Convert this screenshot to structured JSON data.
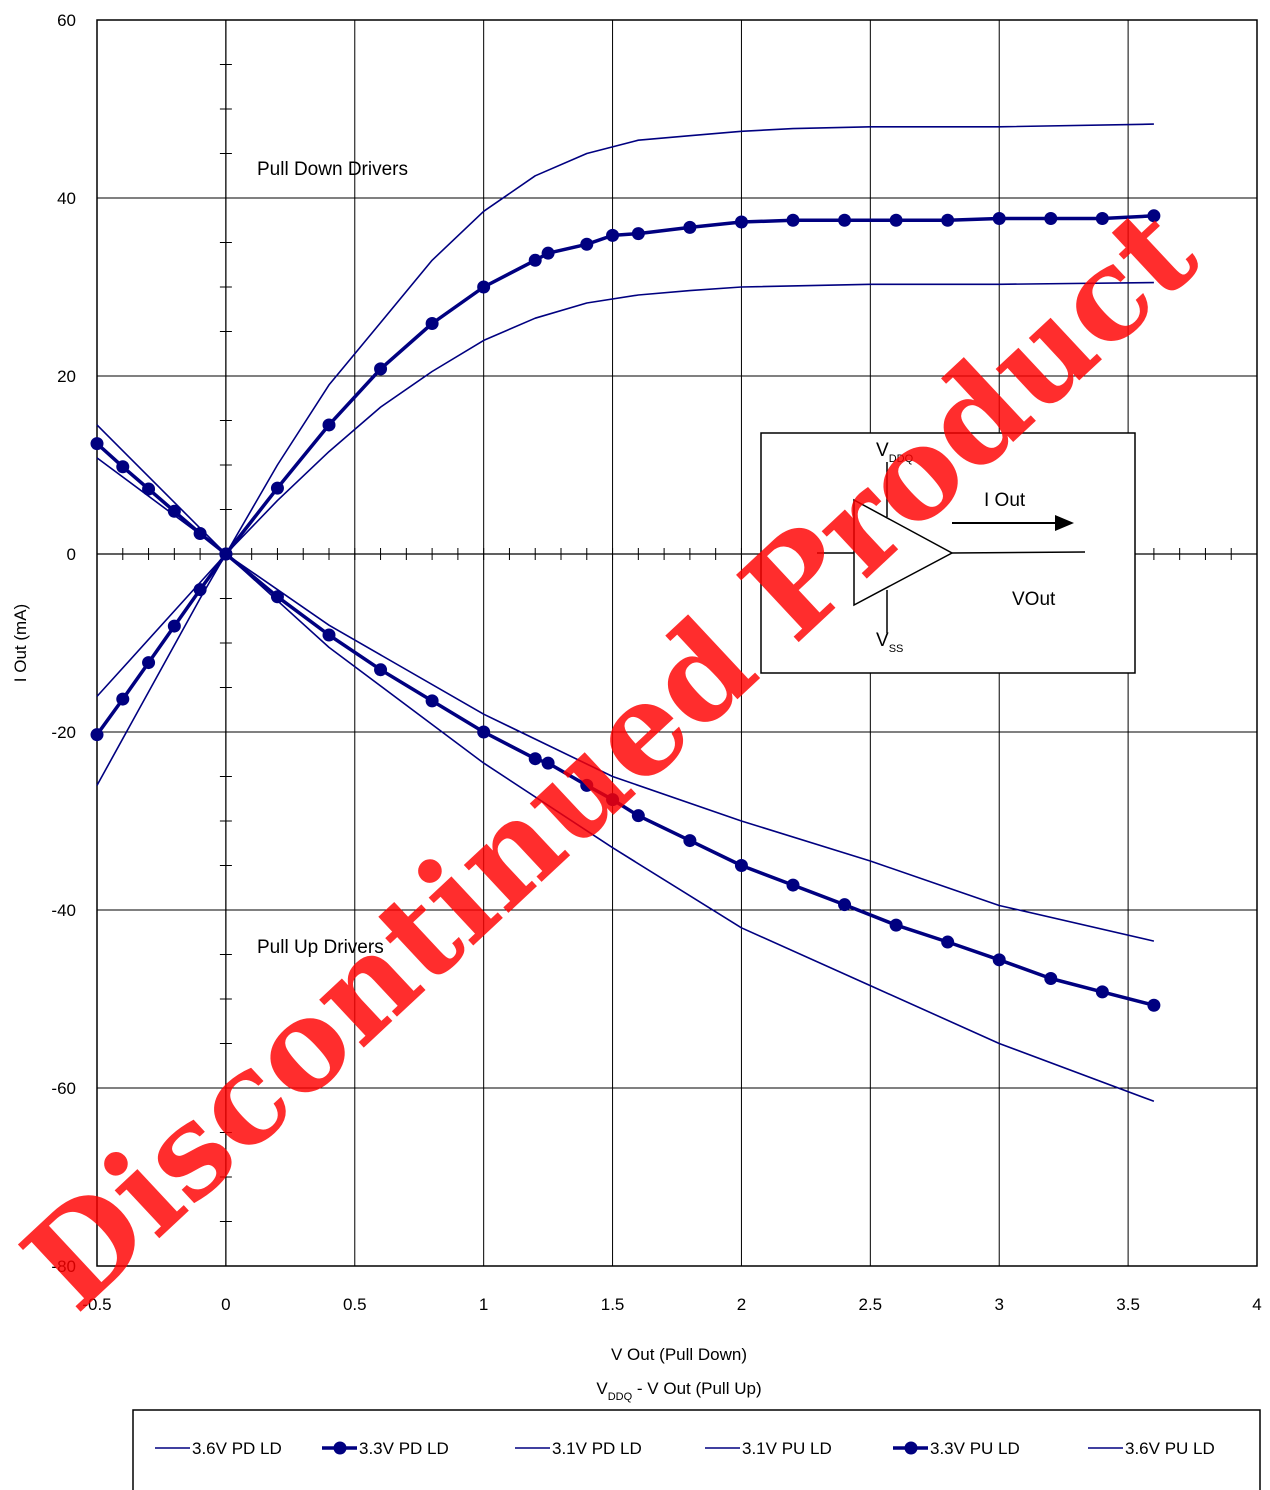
{
  "chart_data": {
    "type": "line",
    "xlabel_line1": "V Out (Pull Down)",
    "xlabel_line2_main": "V",
    "xlabel_line2_sub": "DDQ",
    "xlabel_line2_rest": " - V Out (Pull Up)",
    "ylabel": "I Out (mA)",
    "xlim": [
      -0.5,
      4
    ],
    "ylim": [
      -80,
      60
    ],
    "x_ticks": [
      "-0.5",
      "0",
      "0.5",
      "1",
      "1.5",
      "2",
      "2.5",
      "3",
      "3.5",
      "4"
    ],
    "y_ticks": [
      "60",
      "40",
      "20",
      "0",
      "-20",
      "-40",
      "-60",
      "-80"
    ],
    "grid": true,
    "legend_position": "bottom",
    "annotations": {
      "pull_down": "Pull Down Drivers",
      "pull_up": "Pull Up Drivers"
    },
    "series": [
      {
        "name": "3.6V PD LD",
        "markers": false,
        "x": [
          -0.5,
          -0.1,
          0,
          0.2,
          0.4,
          0.6,
          0.8,
          1.0,
          1.2,
          1.4,
          1.6,
          1.8,
          2.0,
          2.2,
          2.5,
          3.0,
          3.6
        ],
        "y": [
          -26,
          -5,
          0,
          10,
          19,
          26,
          33,
          38.5,
          42.5,
          45,
          46.5,
          47,
          47.5,
          47.8,
          48,
          48,
          48.3
        ]
      },
      {
        "name": "3.3V PD LD",
        "markers": true,
        "x": [
          -0.5,
          -0.4,
          -0.3,
          -0.2,
          -0.1,
          0,
          0.2,
          0.4,
          0.6,
          0.8,
          1.0,
          1.2,
          1.25,
          1.4,
          1.5,
          1.6,
          1.8,
          2.0,
          2.2,
          2.4,
          2.6,
          2.8,
          3.0,
          3.2,
          3.4,
          3.6
        ],
        "y": [
          -20.3,
          -16.3,
          -12.2,
          -8.1,
          -4,
          0,
          7.4,
          14.5,
          20.8,
          25.9,
          30,
          33,
          33.8,
          34.8,
          35.8,
          36,
          36.7,
          37.3,
          37.5,
          37.5,
          37.5,
          37.5,
          37.7,
          37.7,
          37.7,
          38
        ]
      },
      {
        "name": "3.1V PD LD",
        "markers": false,
        "x": [
          -0.5,
          -0.1,
          0,
          0.2,
          0.4,
          0.6,
          0.8,
          1.0,
          1.2,
          1.4,
          1.6,
          1.8,
          2.0,
          2.5,
          3.0,
          3.6
        ],
        "y": [
          -16,
          -3.2,
          0,
          6,
          11.5,
          16.5,
          20.5,
          24,
          26.5,
          28.2,
          29.1,
          29.6,
          30,
          30.3,
          30.3,
          30.5
        ]
      },
      {
        "name": "3.1V PU LD",
        "markers": false,
        "x": [
          -0.5,
          -0.1,
          0,
          0.4,
          1.0,
          1.5,
          2.0,
          2.5,
          3.0,
          3.6
        ],
        "y": [
          10.8,
          2.2,
          0,
          -8,
          -18,
          -25,
          -30,
          -34.5,
          -39.5,
          -43.5
        ]
      },
      {
        "name": "3.3V PU LD",
        "markers": true,
        "x": [
          -0.5,
          -0.4,
          -0.3,
          -0.2,
          -0.1,
          0,
          0.2,
          0.4,
          0.6,
          0.8,
          1.0,
          1.2,
          1.25,
          1.4,
          1.5,
          1.6,
          1.8,
          2.0,
          2.2,
          2.4,
          2.6,
          2.8,
          3.0,
          3.2,
          3.4,
          3.6
        ],
        "y": [
          12.4,
          9.8,
          7.3,
          4.8,
          2.3,
          0,
          -4.8,
          -9.1,
          -13,
          -16.5,
          -20,
          -23,
          -23.5,
          -26,
          -27.6,
          -29.4,
          -32.2,
          -35,
          -37.2,
          -39.4,
          -41.7,
          -43.6,
          -45.6,
          -47.7,
          -49.2,
          -50.7
        ]
      },
      {
        "name": "3.6V PU LD",
        "markers": false,
        "x": [
          -0.5,
          -0.1,
          0,
          0.4,
          1.0,
          1.5,
          2.0,
          2.5,
          3.0,
          3.6
        ],
        "y": [
          14.5,
          2.9,
          0,
          -10.5,
          -23.5,
          -33,
          -42,
          -48.5,
          -55,
          -61.5
        ]
      }
    ],
    "inset": {
      "vddq_main": "V",
      "vddq_sub": "DDQ",
      "vss_main": "V",
      "vss_sub": "SS",
      "iout_label": "I Out",
      "vout_label": "VOut"
    },
    "colors": {
      "series": "#000080",
      "grid": "#000000",
      "watermark": "#ff0000"
    }
  },
  "watermark_text": "Discontinued Product"
}
